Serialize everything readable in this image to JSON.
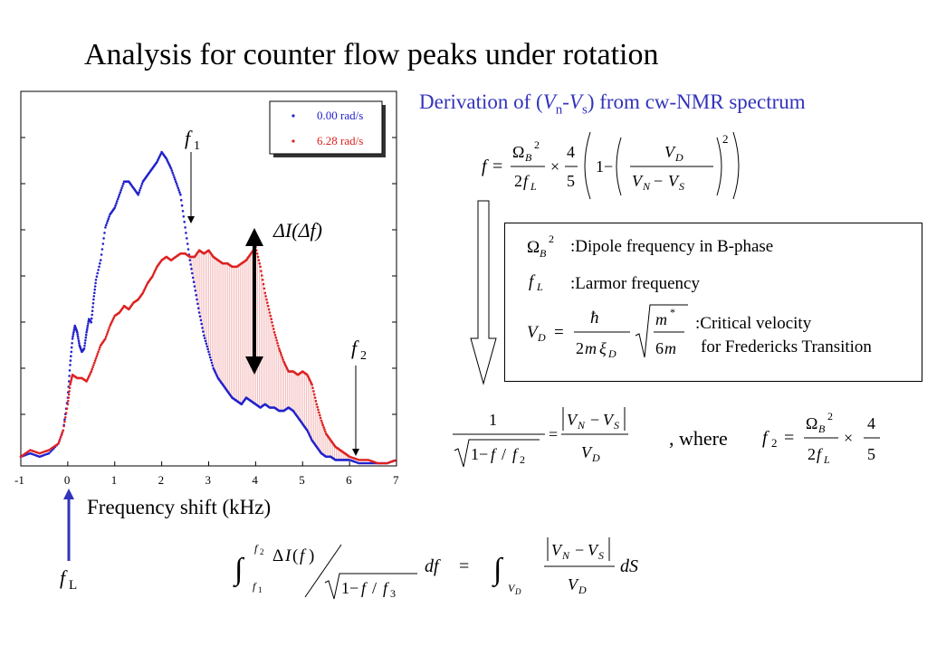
{
  "slide": {
    "title": "Analysis for counter flow peaks under rotation",
    "subtitle": {
      "prefix": "Derivation of (",
      "v": "V",
      "n_sub": "n",
      "dash": "-",
      "s_sub": "s",
      "suffix": ") from cw-NMR spectrum"
    }
  },
  "definitions": [
    {
      "symbol": "Ω_B^2",
      "text": ":Dipole frequency in B-phase"
    },
    {
      "symbol": "f_L",
      "text": ":Larmor frequency"
    },
    {
      "symbol": "V_D",
      "text_line1": ":Critical velocity",
      "text_line2": "for Fredericks Transition"
    }
  ],
  "equations": {
    "f_eq": "f = Ω_B^2 / (2 f_L) × 4/5 (1 − (V_D / (V_N − V_S))^2)",
    "ratio_eq": "1 / sqrt(1 − f/f_2) = |V_N − V_S| / V_D",
    "where_text": ", where",
    "f2_eq": "f_2 = Ω_B^2 / (2 f_L) × 4/5",
    "integral_eq": "∫_{f1}^{f2} ΔI(f) / sqrt(1 − f/f_3) df = ∫_{V_D} |V_N − V_S| / V_D dS",
    "vd_eq": "V_D = ħ / (2 m ξ_D) sqrt(m* / 6m)"
  },
  "chart_annotations": {
    "f1": "f",
    "f1_sub": "1",
    "f2": "f",
    "f2_sub": "2",
    "delta_label": "ΔI(Δf)",
    "fL": "f",
    "fL_sub": "L",
    "x_axis_label": "Frequency shift (kHz)"
  },
  "colors": {
    "blue_series": "#2222cc",
    "red_series": "#dd2222",
    "subtitle": "#3333bb",
    "fill": "#f4b8b8",
    "fL_arrow": "#3333bb"
  },
  "chart_data": {
    "type": "scatter",
    "xlabel": "Frequency shift (kHz)",
    "ylabel": "",
    "xlim": [
      -1,
      7
    ],
    "ticks_x": [
      "-1",
      "0",
      "1",
      "2",
      "3",
      "4",
      "5",
      "6",
      "7"
    ],
    "legend_position": "top-right",
    "series": [
      {
        "name": "0.00 rad/s",
        "color": "#2222cc",
        "x": [
          -1.0,
          -0.8,
          -0.6,
          -0.4,
          -0.2,
          -0.1,
          0.0,
          0.05,
          0.1,
          0.15,
          0.2,
          0.25,
          0.3,
          0.35,
          0.4,
          0.45,
          0.5,
          0.55,
          0.6,
          0.7,
          0.8,
          0.9,
          1.0,
          1.1,
          1.2,
          1.3,
          1.4,
          1.5,
          1.6,
          1.7,
          1.8,
          1.9,
          2.0,
          2.1,
          2.2,
          2.3,
          2.4,
          2.5,
          2.6,
          2.7,
          2.8,
          2.9,
          3.0,
          3.1,
          3.2,
          3.3,
          3.4,
          3.5,
          3.6,
          3.7,
          3.8,
          3.9,
          4.0,
          4.1,
          4.2,
          4.3,
          4.4,
          4.5,
          4.6,
          4.7,
          4.8,
          4.9,
          5.0,
          5.1,
          5.2,
          5.3,
          5.4,
          5.5,
          5.6,
          5.7,
          5.8,
          5.9,
          6.0,
          6.2,
          6.4,
          6.6,
          6.8,
          7.0
        ],
        "y": [
          0.02,
          0.03,
          0.02,
          0.03,
          0.06,
          0.1,
          0.2,
          0.3,
          0.38,
          0.42,
          0.4,
          0.36,
          0.34,
          0.35,
          0.4,
          0.44,
          0.43,
          0.5,
          0.56,
          0.62,
          0.72,
          0.76,
          0.78,
          0.82,
          0.86,
          0.86,
          0.84,
          0.82,
          0.86,
          0.88,
          0.9,
          0.92,
          0.95,
          0.93,
          0.9,
          0.86,
          0.82,
          0.72,
          0.62,
          0.54,
          0.46,
          0.39,
          0.34,
          0.29,
          0.26,
          0.24,
          0.22,
          0.2,
          0.19,
          0.18,
          0.2,
          0.19,
          0.18,
          0.17,
          0.18,
          0.17,
          0.17,
          0.16,
          0.16,
          0.17,
          0.16,
          0.14,
          0.12,
          0.1,
          0.07,
          0.05,
          0.03,
          0.02,
          0.02,
          0.01,
          0.01,
          0.01,
          0.01,
          0.0,
          0.0,
          0.0,
          0.0,
          0.01
        ]
      },
      {
        "name": "6.28 rad/s",
        "color": "#dd2222",
        "x": [
          -1.0,
          -0.8,
          -0.6,
          -0.4,
          -0.2,
          -0.1,
          0.0,
          0.05,
          0.1,
          0.2,
          0.3,
          0.4,
          0.5,
          0.6,
          0.7,
          0.8,
          0.9,
          1.0,
          1.1,
          1.2,
          1.3,
          1.4,
          1.5,
          1.6,
          1.7,
          1.8,
          1.9,
          2.0,
          2.1,
          2.2,
          2.3,
          2.4,
          2.5,
          2.6,
          2.7,
          2.8,
          2.9,
          3.0,
          3.1,
          3.2,
          3.3,
          3.4,
          3.5,
          3.6,
          3.7,
          3.8,
          3.9,
          4.0,
          4.1,
          4.2,
          4.3,
          4.4,
          4.5,
          4.6,
          4.7,
          4.8,
          4.9,
          5.0,
          5.1,
          5.2,
          5.3,
          5.4,
          5.5,
          5.6,
          5.7,
          5.8,
          5.9,
          6.0,
          6.2,
          6.4,
          6.6,
          6.8,
          7.0
        ],
        "y": [
          0.02,
          0.04,
          0.03,
          0.04,
          0.06,
          0.1,
          0.18,
          0.24,
          0.27,
          0.26,
          0.26,
          0.25,
          0.28,
          0.32,
          0.36,
          0.38,
          0.42,
          0.45,
          0.46,
          0.48,
          0.47,
          0.49,
          0.5,
          0.52,
          0.55,
          0.57,
          0.6,
          0.62,
          0.63,
          0.62,
          0.63,
          0.64,
          0.64,
          0.63,
          0.63,
          0.65,
          0.64,
          0.65,
          0.63,
          0.62,
          0.61,
          0.61,
          0.6,
          0.6,
          0.61,
          0.62,
          0.64,
          0.66,
          0.6,
          0.52,
          0.46,
          0.4,
          0.35,
          0.31,
          0.28,
          0.28,
          0.27,
          0.28,
          0.27,
          0.24,
          0.18,
          0.13,
          0.09,
          0.07,
          0.05,
          0.04,
          0.03,
          0.02,
          0.01,
          0.01,
          0.0,
          0.0,
          0.01
        ]
      }
    ]
  }
}
